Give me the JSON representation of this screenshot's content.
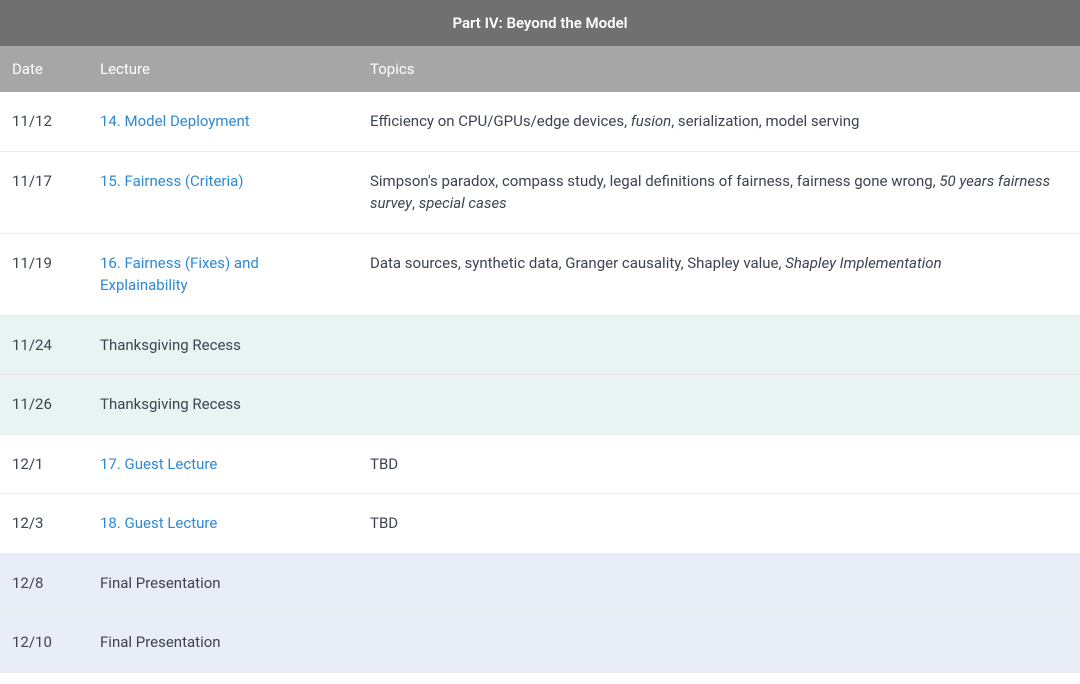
{
  "title": "Part IV: Beyond the Model",
  "columns": {
    "date": "Date",
    "lecture": "Lecture",
    "topics": "Topics"
  },
  "colors": {
    "title_bg": "#707070",
    "header_bg": "#a6a6a6",
    "header_text": "#ffffff",
    "link": "#2f89d2",
    "text": "#3d4451",
    "row_border": "#ececec",
    "recess_bg": "#e7f4f1",
    "final_bg": "#e9edf7",
    "normal_bg": "#ffffff"
  },
  "rows": [
    {
      "type": "normal",
      "date": "11/12",
      "lecture": "14. Model Deployment",
      "lecture_is_link": true,
      "topics_segments": [
        {
          "text": "Efficiency on CPU/GPUs/edge devices, ",
          "italic": false
        },
        {
          "text": "fusion",
          "italic": true
        },
        {
          "text": ", serialization, model serving",
          "italic": false
        }
      ]
    },
    {
      "type": "normal",
      "date": "11/17",
      "lecture": "15. Fairness (Criteria)",
      "lecture_is_link": true,
      "topics_segments": [
        {
          "text": "Simpson's paradox, compass study, legal definitions of fairness, fairness gone wrong, ",
          "italic": false
        },
        {
          "text": "50 years fairness survey",
          "italic": true
        },
        {
          "text": ", ",
          "italic": false
        },
        {
          "text": "special cases",
          "italic": true
        }
      ]
    },
    {
      "type": "normal",
      "date": "11/19",
      "lecture": "16. Fairness (Fixes) and Explainability",
      "lecture_is_link": true,
      "topics_segments": [
        {
          "text": "Data sources, synthetic data, Granger causality, Shapley value, ",
          "italic": false
        },
        {
          "text": "Shapley Implementation",
          "italic": true
        }
      ]
    },
    {
      "type": "recess",
      "date": "11/24",
      "lecture": "Thanksgiving Recess",
      "lecture_is_link": false,
      "topics_segments": []
    },
    {
      "type": "recess",
      "date": "11/26",
      "lecture": "Thanksgiving Recess",
      "lecture_is_link": false,
      "topics_segments": []
    },
    {
      "type": "normal",
      "date": "12/1",
      "lecture": "17. Guest Lecture",
      "lecture_is_link": true,
      "topics_segments": [
        {
          "text": "TBD",
          "italic": false
        }
      ]
    },
    {
      "type": "normal",
      "date": "12/3",
      "lecture": "18. Guest Lecture",
      "lecture_is_link": true,
      "topics_segments": [
        {
          "text": "TBD",
          "italic": false
        }
      ]
    },
    {
      "type": "final",
      "date": "12/8",
      "lecture": "Final Presentation",
      "lecture_is_link": false,
      "topics_segments": []
    },
    {
      "type": "final",
      "date": "12/10",
      "lecture": "Final Presentation",
      "lecture_is_link": false,
      "topics_segments": []
    }
  ]
}
